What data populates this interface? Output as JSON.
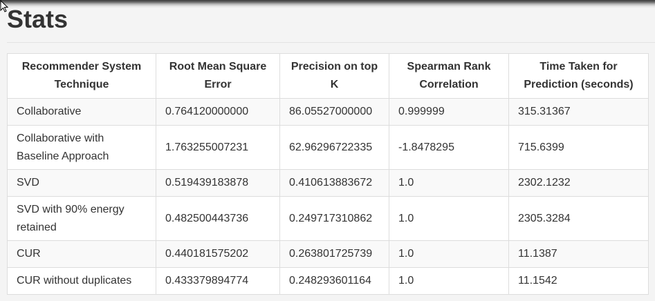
{
  "page": {
    "title": "Stats"
  },
  "table": {
    "headers": [
      "Recommender System Technique",
      "Root Mean Square Error",
      "Precision on top K",
      "Spearman Rank Correlation",
      "Time Taken for Prediction (seconds)"
    ],
    "rows": [
      [
        "Collaborative",
        "0.764120000000",
        "86.05527000000",
        "0.999999",
        "315.31367"
      ],
      [
        "Collaborative with Baseline Approach",
        "1.763255007231",
        "62.96296722335",
        "-1.8478295",
        "715.6399"
      ],
      [
        "SVD",
        "0.519439183878",
        "0.410613883672",
        "1.0",
        "2302.1232"
      ],
      [
        "SVD with 90% energy retained",
        "0.482500443736",
        "0.249717310862",
        "1.0",
        "2305.3284"
      ],
      [
        "CUR",
        "0.440181575202",
        "0.263801725739",
        "1.0",
        "11.1387"
      ],
      [
        "CUR without duplicates",
        "0.433379894774",
        "0.248293601164",
        "1.0",
        "11.1542"
      ]
    ]
  },
  "colors": {
    "page_background": "#f4f4f4",
    "text": "#333333",
    "border": "#dddddd",
    "row_odd": "#f9f9f9",
    "row_even": "#ffffff"
  },
  "icons": {
    "cursor": "mouse-pointer-icon"
  }
}
